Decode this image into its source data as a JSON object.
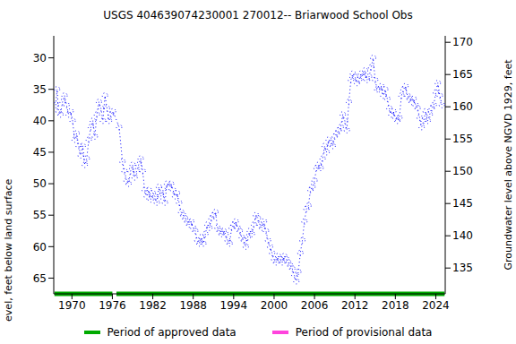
{
  "chart_data": {
    "type": "line",
    "title": "USGS 404639074230001 270012-- Briarwood School Obs",
    "y_label": "Depth to water level, feet below land surface",
    "y2_label": "Groundwater level above NGVD 1929, feet",
    "x": [
      1967.6,
      1967.8,
      1968.0,
      1968.3,
      1968.6,
      1968.9,
      1969.2,
      1969.5,
      1969.8,
      1970.1,
      1970.4,
      1970.7,
      1971.0,
      1971.3,
      1971.6,
      1971.9,
      1972.2,
      1972.5,
      1972.8,
      1973.1,
      1973.4,
      1973.7,
      1974.0,
      1974.3,
      1974.6,
      1974.9,
      1975.2,
      1975.5,
      1975.8,
      1976.1,
      1977.0,
      1977.5,
      1977.8,
      1978.1,
      1978.4,
      1978.7,
      1979.0,
      1979.3,
      1979.6,
      1979.9,
      1980.2,
      1980.5,
      1980.8,
      1981.1,
      1981.4,
      1981.7,
      1982.0,
      1982.3,
      1982.6,
      1982.9,
      1983.2,
      1983.5,
      1983.8,
      1984.1,
      1984.4,
      1984.7,
      1985.0,
      1985.3,
      1985.6,
      1985.9,
      1986.2,
      1986.5,
      1986.8,
      1987.1,
      1987.4,
      1987.7,
      1988.0,
      1988.3,
      1988.6,
      1988.9,
      1989.2,
      1989.5,
      1989.8,
      1990.1,
      1990.4,
      1990.7,
      1991.0,
      1991.3,
      1991.6,
      1991.9,
      1992.2,
      1992.5,
      1992.8,
      1993.1,
      1993.4,
      1993.7,
      1994.0,
      1994.3,
      1994.6,
      1994.9,
      1995.2,
      1995.5,
      1995.8,
      1996.1,
      1996.4,
      1996.7,
      1997.0,
      1997.3,
      1997.6,
      1997.9,
      1998.2,
      1998.5,
      1998.8,
      1999.1,
      1999.4,
      1999.7,
      2000.0,
      2000.3,
      2000.6,
      2000.9,
      2001.2,
      2001.5,
      2001.8,
      2002.1,
      2002.4,
      2002.7,
      2003.0,
      2003.3,
      2003.6,
      2003.9,
      2004.2,
      2004.5,
      2004.8,
      2005.1,
      2005.4,
      2005.7,
      2006.0,
      2006.3,
      2006.6,
      2006.9,
      2007.2,
      2007.5,
      2007.8,
      2008.1,
      2008.4,
      2008.7,
      2009.0,
      2009.3,
      2009.6,
      2009.9,
      2010.2,
      2010.5,
      2010.8,
      2011.1,
      2011.4,
      2011.7,
      2012.0,
      2012.3,
      2012.6,
      2012.9,
      2013.2,
      2013.5,
      2013.8,
      2014.1,
      2014.4,
      2014.7,
      2015.0,
      2015.3,
      2015.6,
      2015.9,
      2016.2,
      2016.5,
      2016.8,
      2017.1,
      2017.4,
      2017.7,
      2018.0,
      2018.3,
      2018.6,
      2018.9,
      2019.2,
      2019.5,
      2019.8,
      2020.1,
      2020.4,
      2020.7,
      2021.0,
      2021.3,
      2021.6,
      2021.9,
      2022.2,
      2022.5,
      2022.8,
      2023.1,
      2023.4,
      2023.7,
      2024.0,
      2024.3,
      2024.6,
      2024.9
    ],
    "series": [
      {
        "name": "Depth to water level",
        "color": "#0000ff",
        "marker": "circle",
        "line_style": "dotted",
        "values": [
          37.5,
          35,
          38.5,
          39,
          37,
          36,
          37.5,
          39,
          38.5,
          40,
          43,
          42,
          44,
          45.5,
          44,
          47,
          46,
          43,
          41,
          40,
          42.5,
          39,
          37,
          38,
          40,
          36,
          38,
          40,
          39,
          38.5,
          41,
          46.5,
          48,
          49.5,
          50,
          48,
          47,
          49,
          48,
          47,
          46,
          48,
          51,
          52,
          51,
          52.5,
          51.5,
          52,
          53,
          50.5,
          52,
          51,
          53,
          50,
          50.5,
          50,
          51,
          52,
          51.5,
          53,
          54.5,
          55,
          55.5,
          56,
          56.5,
          56,
          57,
          57.5,
          59,
          59.5,
          58.5,
          59.5,
          58,
          56.5,
          57,
          55.5,
          55,
          54.5,
          57,
          57.5,
          58,
          57.5,
          58,
          59,
          59.5,
          57,
          56.5,
          56,
          57,
          57.5,
          58.5,
          59,
          60,
          58.5,
          57.5,
          58,
          56.5,
          55,
          55.5,
          56.5,
          57,
          56,
          57.5,
          59,
          60,
          61,
          62,
          62.5,
          61.5,
          62,
          62.5,
          61.5,
          62,
          62.5,
          63,
          63.5,
          64.5,
          65.5,
          64,
          61,
          59,
          56,
          54,
          53.5,
          51,
          50.5,
          49.5,
          47.5,
          47,
          47.5,
          46,
          44,
          45,
          43,
          43.5,
          44,
          42.5,
          42,
          41.5,
          41,
          39,
          40,
          41.5,
          37,
          33.5,
          32.5,
          33,
          34,
          33.5,
          32.5,
          33,
          32,
          33.5,
          33,
          31.5,
          30,
          33.5,
          35,
          35,
          34.5,
          36,
          35,
          36.5,
          38,
          39,
          38.5,
          39.5,
          40,
          39.5,
          36,
          35,
          34.5,
          36,
          36.5,
          37,
          36.5,
          37.5,
          38,
          39.5,
          41,
          40,
          38.5,
          40,
          39,
          38,
          37.5,
          35.5,
          34,
          36,
          37.5
        ]
      }
    ],
    "xlim": [
      1967.3,
      2025.4
    ],
    "xticks": [
      1970,
      1976,
      1982,
      1988,
      1994,
      2000,
      2006,
      2012,
      2018,
      2024
    ],
    "ylim": [
      26.5,
      67.5
    ],
    "yticks": [
      30,
      35,
      40,
      45,
      50,
      55,
      60,
      65
    ],
    "y2lim": [
      131,
      171
    ],
    "y2ticks": [
      135,
      140,
      145,
      150,
      155,
      160,
      165,
      170
    ],
    "approved_periods": [
      [
        1967.4,
        1976.0
      ],
      [
        1976.6,
        2025.3
      ]
    ],
    "legend_items": [
      {
        "name": "Period of approved data",
        "color": "#00aa00"
      },
      {
        "name": "Period of provisional data",
        "color": "#ff44dd"
      }
    ],
    "legend": "bottom",
    "grid": false
  }
}
